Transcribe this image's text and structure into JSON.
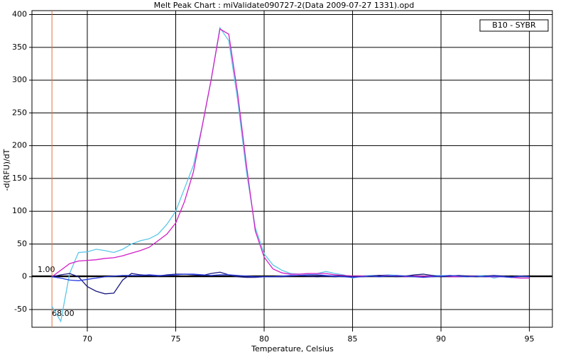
{
  "chart_data": {
    "type": "line",
    "title": "Melt Peak Chart : miValidate090727-2(Data 2009-07-27 1331).opd",
    "x_label": "Temperature, Celsius",
    "y_label": "-d(RFU)/dT",
    "legend_text": "B10 - SYBR",
    "xlim": [
      66.87,
      96.3
    ],
    "ylim": [
      -77,
      406
    ],
    "xticks": [
      70,
      75,
      80,
      85,
      90,
      95
    ],
    "yticks": [
      -50,
      0,
      50,
      100,
      150,
      200,
      250,
      300,
      350,
      400
    ],
    "grid": true,
    "threshold": {
      "value": 1,
      "label": "1.00",
      "color": "#000000"
    },
    "marker": {
      "value": 68,
      "label": "68.00",
      "color": "#e07040"
    },
    "x": [
      68,
      68.5,
      69,
      69.5,
      70,
      70.5,
      71,
      71.5,
      72,
      72.5,
      73,
      73.5,
      74,
      74.5,
      75,
      75.5,
      76,
      76.5,
      77,
      77.5,
      78,
      78.5,
      79,
      79.5,
      80,
      80.5,
      81,
      81.5,
      82,
      82.5,
      83,
      83.5,
      84,
      84.5,
      85,
      85.5,
      86,
      86.5,
      87,
      87.5,
      88,
      88.5,
      89,
      89.5,
      90,
      90.5,
      91,
      91.5,
      92,
      92.5,
      93,
      93.5,
      94,
      94.5,
      95
    ],
    "series": [
      {
        "color": "#5bc8e8",
        "values": [
          -45,
          -68,
          5,
          37,
          38,
          42,
          40,
          37,
          42,
          50,
          55,
          58,
          65,
          80,
          100,
          135,
          170,
          230,
          300,
          380,
          360,
          270,
          160,
          75,
          35,
          18,
          10,
          5,
          4,
          5,
          5,
          8,
          5,
          3,
          -2,
          1,
          2,
          2,
          3,
          2,
          1,
          0,
          1,
          2,
          2,
          1,
          1,
          0,
          1,
          2,
          -2,
          1,
          0,
          1,
          0
        ]
      },
      {
        "color": "#d21fc8",
        "values": [
          0,
          10,
          20,
          24,
          25,
          26,
          28,
          29,
          32,
          36,
          40,
          45,
          55,
          65,
          82,
          115,
          160,
          230,
          300,
          378,
          370,
          280,
          170,
          70,
          30,
          12,
          6,
          4,
          4,
          5,
          5,
          5,
          3,
          2,
          1,
          1,
          1,
          2,
          2,
          1,
          0,
          1,
          1,
          1,
          1,
          0,
          0,
          1,
          1,
          0,
          0,
          0,
          -1,
          -2,
          -2
        ]
      },
      {
        "color": "#1a1a80",
        "values": [
          0,
          3,
          5,
          0,
          -15,
          -22,
          -26,
          -25,
          -5,
          5,
          3,
          2,
          1,
          3,
          4,
          4,
          3,
          2,
          5,
          7,
          3,
          0,
          -1,
          -1,
          0,
          0,
          0,
          1,
          2,
          1,
          0,
          1,
          0,
          1,
          0,
          0,
          1,
          2,
          1,
          0,
          1,
          3,
          4,
          2,
          0,
          1,
          2,
          1,
          0,
          1,
          2,
          1,
          0,
          1,
          0
        ]
      },
      {
        "color": "#2a3ce0",
        "values": [
          0,
          -2,
          -5,
          -6,
          -4,
          -2,
          0,
          1,
          2,
          2,
          2,
          3,
          2,
          2,
          3,
          4,
          4,
          3,
          2,
          3,
          3,
          2,
          1,
          0,
          0,
          0,
          1,
          2,
          2,
          3,
          3,
          2,
          1,
          0,
          -1,
          0,
          1,
          0,
          1,
          2,
          1,
          0,
          -1,
          0,
          1,
          2,
          1,
          0,
          1,
          0,
          1,
          0,
          -1,
          1,
          0
        ]
      }
    ]
  }
}
